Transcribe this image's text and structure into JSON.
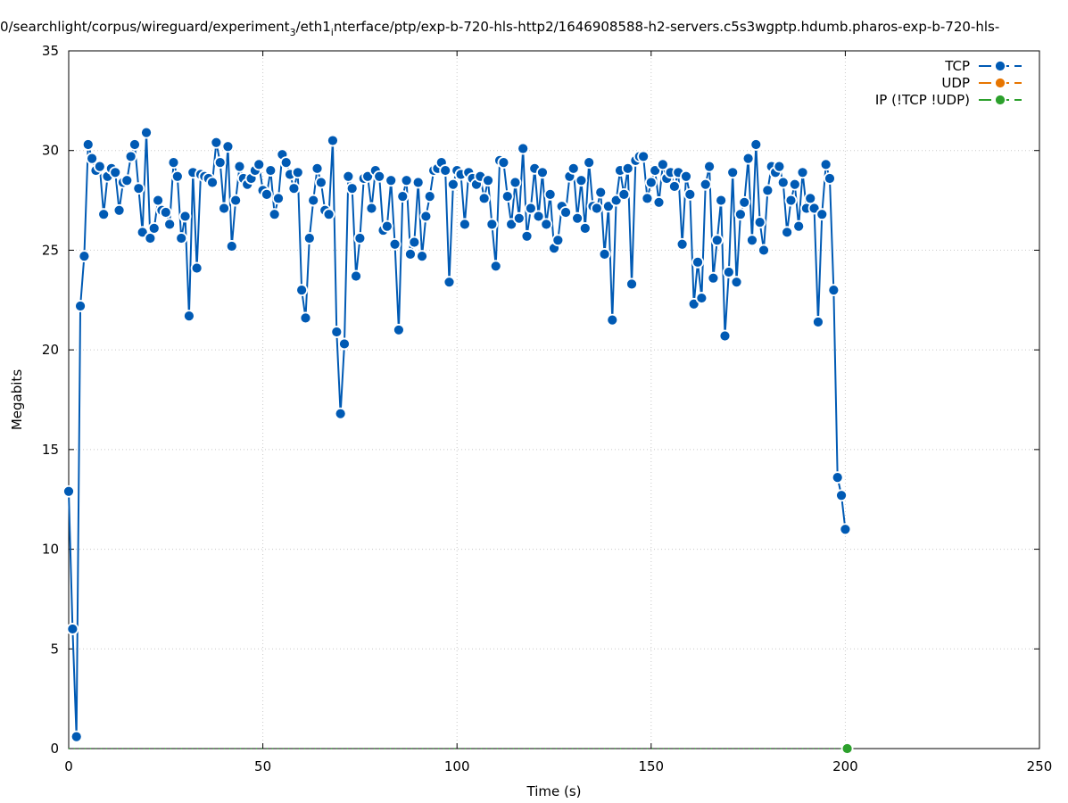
{
  "chart_data": {
    "type": "line",
    "title": "0/searchlight/corpus/wireguard/experiment",
    "title_sub": "3",
    "title_mid": "/eth1",
    "title_sub2": "i",
    "title_rest": "nterface/ptp/exp-b-720-hls-http2/1646908588-h2-servers.c5s3wgptp.hdumb.pharos-exp-b-720-hls-",
    "xlabel": "Time (s)",
    "ylabel": "Megabits",
    "xlim": [
      0,
      250
    ],
    "ylim": [
      0,
      35
    ],
    "xticks": [
      0,
      50,
      100,
      150,
      200,
      250
    ],
    "yticks": [
      0,
      5,
      10,
      15,
      20,
      25,
      30,
      35
    ],
    "grid": true,
    "legend_position": "top-right",
    "series": [
      {
        "name": "TCP",
        "color": "#005ab4",
        "points": [
          [
            0,
            12.9
          ],
          [
            1,
            6.0
          ],
          [
            2,
            0.6
          ],
          [
            3,
            22.2
          ],
          [
            4,
            24.7
          ],
          [
            5,
            30.3
          ],
          [
            6,
            29.6
          ],
          [
            7,
            29.0
          ],
          [
            8,
            29.2
          ],
          [
            9,
            26.8
          ],
          [
            10,
            28.7
          ],
          [
            11,
            29.1
          ],
          [
            12,
            28.9
          ],
          [
            13,
            27.0
          ],
          [
            14,
            28.4
          ],
          [
            15,
            28.5
          ],
          [
            16,
            29.7
          ],
          [
            17,
            30.3
          ],
          [
            18,
            28.1
          ],
          [
            19,
            25.9
          ],
          [
            20,
            30.9
          ],
          [
            21,
            25.6
          ],
          [
            22,
            26.1
          ],
          [
            23,
            27.5
          ],
          [
            24,
            27.0
          ],
          [
            25,
            26.9
          ],
          [
            26,
            26.3
          ],
          [
            27,
            29.4
          ],
          [
            28,
            28.7
          ],
          [
            29,
            25.6
          ],
          [
            30,
            26.7
          ],
          [
            31,
            21.7
          ],
          [
            32,
            28.9
          ],
          [
            33,
            24.1
          ],
          [
            34,
            28.8
          ],
          [
            35,
            28.7
          ],
          [
            36,
            28.6
          ],
          [
            37,
            28.4
          ],
          [
            38,
            30.4
          ],
          [
            39,
            29.4
          ],
          [
            40,
            27.1
          ],
          [
            41,
            30.2
          ],
          [
            42,
            25.2
          ],
          [
            43,
            27.5
          ],
          [
            44,
            29.2
          ],
          [
            45,
            28.6
          ],
          [
            46,
            28.3
          ],
          [
            47,
            28.6
          ],
          [
            48,
            29.0
          ],
          [
            49,
            29.3
          ],
          [
            50,
            28.0
          ],
          [
            51,
            27.8
          ],
          [
            52,
            29.0
          ],
          [
            53,
            26.8
          ],
          [
            54,
            27.6
          ],
          [
            55,
            29.8
          ],
          [
            56,
            29.4
          ],
          [
            57,
            28.8
          ],
          [
            58,
            28.1
          ],
          [
            59,
            28.9
          ],
          [
            60,
            23.0
          ],
          [
            61,
            21.6
          ],
          [
            62,
            25.6
          ],
          [
            63,
            27.5
          ],
          [
            64,
            29.1
          ],
          [
            65,
            28.4
          ],
          [
            66,
            27.0
          ],
          [
            67,
            26.8
          ],
          [
            68,
            30.5
          ],
          [
            69,
            20.9
          ],
          [
            70,
            16.8
          ],
          [
            71,
            20.3
          ],
          [
            72,
            28.7
          ],
          [
            73,
            28.1
          ],
          [
            74,
            23.7
          ],
          [
            75,
            25.6
          ],
          [
            76,
            28.6
          ],
          [
            77,
            28.7
          ],
          [
            78,
            27.1
          ],
          [
            79,
            29.0
          ],
          [
            80,
            28.7
          ],
          [
            81,
            26.0
          ],
          [
            82,
            26.2
          ],
          [
            83,
            28.5
          ],
          [
            84,
            25.3
          ],
          [
            85,
            21.0
          ],
          [
            86,
            27.7
          ],
          [
            87,
            28.5
          ],
          [
            88,
            24.8
          ],
          [
            89,
            25.4
          ],
          [
            90,
            28.4
          ],
          [
            91,
            24.7
          ],
          [
            92,
            26.7
          ],
          [
            93,
            27.7
          ],
          [
            94,
            29.0
          ],
          [
            95,
            29.1
          ],
          [
            96,
            29.4
          ],
          [
            97,
            29.0
          ],
          [
            98,
            23.4
          ],
          [
            99,
            28.3
          ],
          [
            100,
            29.0
          ],
          [
            101,
            28.8
          ],
          [
            102,
            26.3
          ],
          [
            103,
            28.9
          ],
          [
            104,
            28.6
          ],
          [
            105,
            28.3
          ],
          [
            106,
            28.7
          ],
          [
            107,
            27.6
          ],
          [
            108,
            28.5
          ],
          [
            109,
            26.3
          ],
          [
            110,
            24.2
          ],
          [
            111,
            29.5
          ],
          [
            112,
            29.4
          ],
          [
            113,
            27.7
          ],
          [
            114,
            26.3
          ],
          [
            115,
            28.4
          ],
          [
            116,
            26.6
          ],
          [
            117,
            30.1
          ],
          [
            118,
            25.7
          ],
          [
            119,
            27.1
          ],
          [
            120,
            29.1
          ],
          [
            121,
            26.7
          ],
          [
            122,
            28.9
          ],
          [
            123,
            26.3
          ],
          [
            124,
            27.8
          ],
          [
            125,
            25.1
          ],
          [
            126,
            25.5
          ],
          [
            127,
            27.2
          ],
          [
            128,
            26.9
          ],
          [
            129,
            28.7
          ],
          [
            130,
            29.1
          ],
          [
            131,
            26.6
          ],
          [
            132,
            28.5
          ],
          [
            133,
            26.1
          ],
          [
            134,
            29.4
          ],
          [
            135,
            27.2
          ],
          [
            136,
            27.1
          ],
          [
            137,
            27.9
          ],
          [
            138,
            24.8
          ],
          [
            139,
            27.2
          ],
          [
            140,
            21.5
          ],
          [
            141,
            27.5
          ],
          [
            142,
            29.0
          ],
          [
            143,
            27.8
          ],
          [
            144,
            29.1
          ],
          [
            145,
            23.3
          ],
          [
            146,
            29.5
          ],
          [
            147,
            29.7
          ],
          [
            148,
            29.7
          ],
          [
            149,
            27.6
          ],
          [
            150,
            28.4
          ],
          [
            151,
            29.0
          ],
          [
            152,
            27.4
          ],
          [
            153,
            29.3
          ],
          [
            154,
            28.6
          ],
          [
            155,
            28.9
          ],
          [
            156,
            28.2
          ],
          [
            157,
            28.9
          ],
          [
            158,
            25.3
          ],
          [
            159,
            28.7
          ],
          [
            160,
            27.8
          ],
          [
            161,
            22.3
          ],
          [
            162,
            24.4
          ],
          [
            163,
            22.6
          ],
          [
            164,
            28.3
          ],
          [
            165,
            29.2
          ],
          [
            166,
            23.6
          ],
          [
            167,
            25.5
          ],
          [
            168,
            27.5
          ],
          [
            169,
            20.7
          ],
          [
            170,
            23.9
          ],
          [
            171,
            28.9
          ],
          [
            172,
            23.4
          ],
          [
            173,
            26.8
          ],
          [
            174,
            27.4
          ],
          [
            175,
            29.6
          ],
          [
            176,
            25.5
          ],
          [
            177,
            30.3
          ],
          [
            178,
            26.4
          ],
          [
            179,
            25.0
          ],
          [
            180,
            28.0
          ],
          [
            181,
            29.2
          ],
          [
            182,
            28.9
          ],
          [
            183,
            29.2
          ],
          [
            184,
            28.4
          ],
          [
            185,
            25.9
          ],
          [
            186,
            27.5
          ],
          [
            187,
            28.3
          ],
          [
            188,
            26.2
          ],
          [
            189,
            28.9
          ],
          [
            190,
            27.1
          ],
          [
            191,
            27.6
          ],
          [
            192,
            27.1
          ],
          [
            193,
            21.4
          ],
          [
            194,
            26.8
          ],
          [
            195,
            29.3
          ],
          [
            196,
            28.6
          ],
          [
            197,
            23.0
          ],
          [
            198,
            13.6
          ],
          [
            199,
            12.7
          ],
          [
            200,
            11.0
          ]
        ]
      },
      {
        "name": "UDP",
        "color": "#e77500",
        "points": []
      },
      {
        "name": "IP (!TCP  !UDP)",
        "color": "#2ca02c",
        "points": [
          [
            200.5,
            0
          ]
        ]
      }
    ]
  }
}
